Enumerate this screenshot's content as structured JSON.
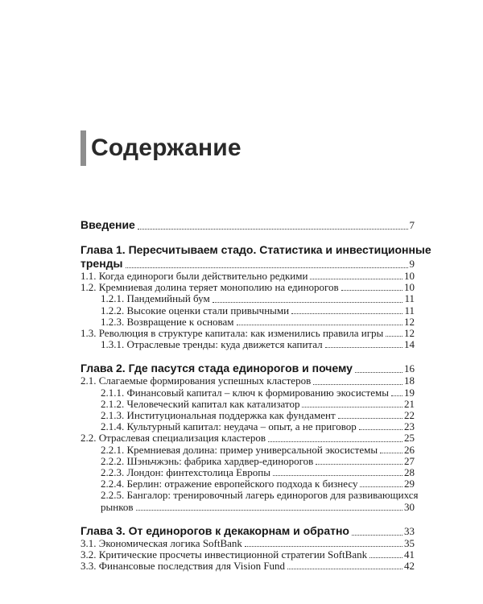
{
  "page": {
    "title": "Содержание",
    "accent_bar_color": "#8e8e8e",
    "background_color": "#ffffff",
    "text_color": "#1d1d1d"
  },
  "toc": {
    "entries": [
      {
        "label": "Введение",
        "page": "7",
        "style": "chapter",
        "indent": 0
      },
      {
        "label": "Глава 1. Пересчитываем стадо. Статистика и инвестиционные",
        "label2": "тренды",
        "page": "9",
        "style": "chapter",
        "indent": 0
      },
      {
        "label": "1.1. Когда единороги были действительно редкими",
        "page": "10",
        "style": "item",
        "indent": 0
      },
      {
        "label": "1.2. Кремниевая долина теряет монополию на единорогов",
        "page": "10",
        "style": "item",
        "indent": 0
      },
      {
        "label": "1.2.1. Пандемийный бум",
        "page": "11",
        "style": "item",
        "indent": 1
      },
      {
        "label": "1.2.2. Высокие оценки стали привычными",
        "page": "11",
        "style": "item",
        "indent": 1
      },
      {
        "label": "1.2.3. Возвращение к основам",
        "page": "12",
        "style": "item",
        "indent": 1
      },
      {
        "label": "1.3. Революция в структуре капитала: как изменились правила игры",
        "page": "12",
        "style": "item",
        "indent": 0
      },
      {
        "label": "1.3.1. Отраслевые тренды: куда движется капитал",
        "page": "14",
        "style": "item",
        "indent": 1
      },
      {
        "label": "Глава 2. Где пасутся стада единорогов и почему",
        "page": "16",
        "style": "chapter",
        "indent": 0
      },
      {
        "label": "2.1. Слагаемые формирования успешных кластеров",
        "page": "18",
        "style": "item",
        "indent": 0
      },
      {
        "label": "2.1.1. Финансовый капитал – ключ к формированию экосистемы",
        "page": "19",
        "style": "item",
        "indent": 1
      },
      {
        "label": "2.1.2. Человеческий капитал как катализатор",
        "page": "21",
        "style": "item",
        "indent": 1
      },
      {
        "label": "2.1.3. Институциональная поддержка как фундамент",
        "page": "22",
        "style": "item",
        "indent": 1
      },
      {
        "label": "2.1.4. Культурный капитал: неудача – опыт, а не приговор",
        "page": "23",
        "style": "item",
        "indent": 1
      },
      {
        "label": "2.2. Отраслевая специализация кластеров",
        "page": "25",
        "style": "item",
        "indent": 0
      },
      {
        "label": "2.2.1. Кремниевая долина: пример универсальной экосистемы",
        "page": "26",
        "style": "item",
        "indent": 1
      },
      {
        "label": "2.2.2. Шэньчжэнь: фабрика хардвер-единорогов",
        "page": "27",
        "style": "item",
        "indent": 1
      },
      {
        "label": "2.2.3. Лондон: финтехстолица Европы",
        "page": "28",
        "style": "item",
        "indent": 1
      },
      {
        "label": "2.2.4. Берлин: отражение европейского подхода к бизнесу",
        "page": "29",
        "style": "item",
        "indent": 1
      },
      {
        "label": "2.2.5. Бангалор: тренировочный лагерь единорогов для развивающихся",
        "label2": "рынков",
        "page": "30",
        "style": "item",
        "indent": 1
      },
      {
        "label": "Глава 3. От единорогов к декакорнам и обратно",
        "page": "33",
        "style": "chapter",
        "indent": 0
      },
      {
        "label": "3.1. Экономическая логика SoftBank",
        "page": "35",
        "style": "item",
        "indent": 0
      },
      {
        "label": "3.2. Критические просчеты инвестиционной стратегии SoftBank",
        "page": "41",
        "style": "item",
        "indent": 0
      },
      {
        "label": "3.3. Финансовые последствия для Vision Fund",
        "page": "42",
        "style": "item",
        "indent": 0
      }
    ]
  }
}
